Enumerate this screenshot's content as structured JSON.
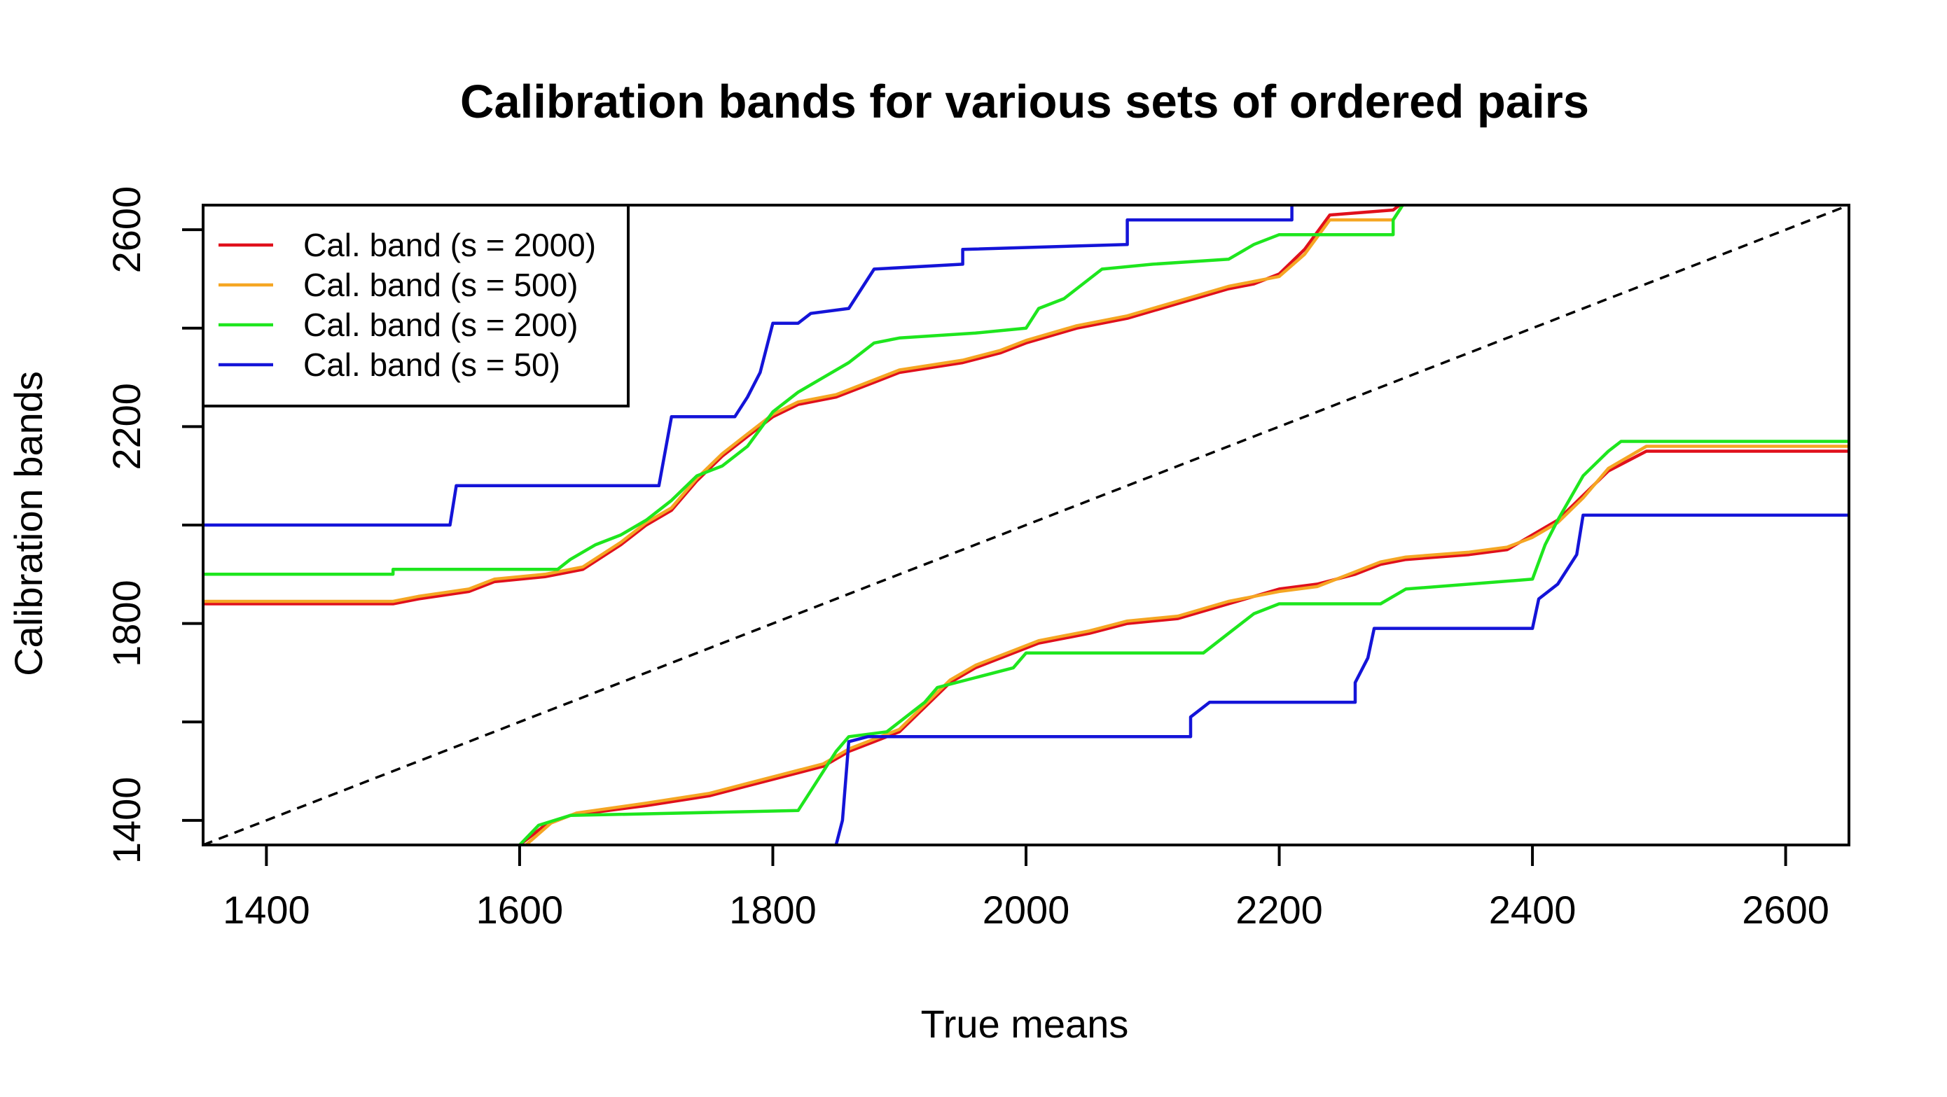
{
  "chart_data": {
    "type": "line",
    "title": "Calibration bands for various sets of ordered pairs",
    "xlabel": "True means",
    "ylabel": "Calibration bands",
    "xlim": [
      1350,
      2650
    ],
    "ylim": [
      1350,
      2650
    ],
    "xticks": [
      1400,
      1600,
      1800,
      2000,
      2200,
      2400,
      2600
    ],
    "yticks": [
      1400,
      1800,
      2200,
      2600
    ],
    "grid": false,
    "legend_position": "top-left",
    "reference_line": {
      "style": "dashed",
      "color": "#000000",
      "points": [
        [
          1350,
          1350
        ],
        [
          2650,
          2650
        ]
      ]
    },
    "series": [
      {
        "name": "Cal. band (s = 2000)",
        "color": "#e0101c",
        "upper": [
          [
            1350,
            1840
          ],
          [
            1500,
            1840
          ],
          [
            1520,
            1850
          ],
          [
            1560,
            1865
          ],
          [
            1580,
            1885
          ],
          [
            1620,
            1895
          ],
          [
            1650,
            1910
          ],
          [
            1680,
            1960
          ],
          [
            1700,
            2000
          ],
          [
            1720,
            2030
          ],
          [
            1740,
            2090
          ],
          [
            1760,
            2140
          ],
          [
            1780,
            2180
          ],
          [
            1800,
            2220
          ],
          [
            1820,
            2245
          ],
          [
            1850,
            2260
          ],
          [
            1880,
            2290
          ],
          [
            1900,
            2310
          ],
          [
            1950,
            2330
          ],
          [
            1980,
            2350
          ],
          [
            2000,
            2370
          ],
          [
            2040,
            2400
          ],
          [
            2080,
            2420
          ],
          [
            2120,
            2450
          ],
          [
            2160,
            2480
          ],
          [
            2180,
            2490
          ],
          [
            2200,
            2510
          ],
          [
            2220,
            2560
          ],
          [
            2240,
            2630
          ],
          [
            2290,
            2640
          ],
          [
            2300,
            2660
          ]
        ],
        "lower": [
          [
            1600,
            1350
          ],
          [
            1620,
            1390
          ],
          [
            1640,
            1410
          ],
          [
            1700,
            1430
          ],
          [
            1750,
            1450
          ],
          [
            1780,
            1470
          ],
          [
            1810,
            1490
          ],
          [
            1840,
            1510
          ],
          [
            1860,
            1540
          ],
          [
            1880,
            1560
          ],
          [
            1900,
            1580
          ],
          [
            1920,
            1630
          ],
          [
            1940,
            1680
          ],
          [
            1960,
            1710
          ],
          [
            1990,
            1740
          ],
          [
            2010,
            1760
          ],
          [
            2050,
            1780
          ],
          [
            2080,
            1800
          ],
          [
            2120,
            1810
          ],
          [
            2160,
            1840
          ],
          [
            2200,
            1870
          ],
          [
            2230,
            1880
          ],
          [
            2260,
            1900
          ],
          [
            2280,
            1920
          ],
          [
            2300,
            1930
          ],
          [
            2350,
            1940
          ],
          [
            2380,
            1950
          ],
          [
            2400,
            1980
          ],
          [
            2420,
            2010
          ],
          [
            2440,
            2060
          ],
          [
            2460,
            2110
          ],
          [
            2490,
            2150
          ],
          [
            2650,
            2150
          ]
        ]
      },
      {
        "name": "Cal. band (s = 500)",
        "color": "#f5a623",
        "upper": [
          [
            1350,
            1845
          ],
          [
            1500,
            1845
          ],
          [
            1520,
            1855
          ],
          [
            1560,
            1870
          ],
          [
            1580,
            1890
          ],
          [
            1620,
            1900
          ],
          [
            1650,
            1915
          ],
          [
            1680,
            1965
          ],
          [
            1700,
            2005
          ],
          [
            1720,
            2035
          ],
          [
            1740,
            2095
          ],
          [
            1760,
            2145
          ],
          [
            1780,
            2185
          ],
          [
            1800,
            2225
          ],
          [
            1820,
            2250
          ],
          [
            1850,
            2265
          ],
          [
            1880,
            2295
          ],
          [
            1900,
            2315
          ],
          [
            1950,
            2335
          ],
          [
            1980,
            2355
          ],
          [
            2000,
            2375
          ],
          [
            2040,
            2405
          ],
          [
            2080,
            2425
          ],
          [
            2120,
            2455
          ],
          [
            2160,
            2485
          ],
          [
            2180,
            2495
          ],
          [
            2200,
            2505
          ],
          [
            2220,
            2550
          ],
          [
            2240,
            2620
          ],
          [
            2290,
            2620
          ],
          [
            2300,
            2660
          ]
        ],
        "lower": [
          [
            1605,
            1350
          ],
          [
            1625,
            1395
          ],
          [
            1645,
            1415
          ],
          [
            1700,
            1435
          ],
          [
            1750,
            1455
          ],
          [
            1780,
            1475
          ],
          [
            1810,
            1495
          ],
          [
            1840,
            1515
          ],
          [
            1860,
            1545
          ],
          [
            1880,
            1565
          ],
          [
            1900,
            1585
          ],
          [
            1920,
            1635
          ],
          [
            1940,
            1685
          ],
          [
            1960,
            1715
          ],
          [
            1990,
            1745
          ],
          [
            2010,
            1765
          ],
          [
            2050,
            1785
          ],
          [
            2080,
            1805
          ],
          [
            2120,
            1815
          ],
          [
            2160,
            1845
          ],
          [
            2200,
            1865
          ],
          [
            2230,
            1875
          ],
          [
            2260,
            1905
          ],
          [
            2280,
            1925
          ],
          [
            2300,
            1935
          ],
          [
            2350,
            1945
          ],
          [
            2380,
            1955
          ],
          [
            2400,
            1975
          ],
          [
            2420,
            2005
          ],
          [
            2440,
            2055
          ],
          [
            2460,
            2115
          ],
          [
            2490,
            2160
          ],
          [
            2650,
            2160
          ]
        ]
      },
      {
        "name": "Cal. band (s = 200)",
        "color": "#1ee61e",
        "upper": [
          [
            1350,
            1900
          ],
          [
            1500,
            1900
          ],
          [
            1500,
            1910
          ],
          [
            1630,
            1910
          ],
          [
            1640,
            1930
          ],
          [
            1660,
            1960
          ],
          [
            1680,
            1980
          ],
          [
            1700,
            2010
          ],
          [
            1720,
            2050
          ],
          [
            1740,
            2100
          ],
          [
            1760,
            2120
          ],
          [
            1780,
            2160
          ],
          [
            1800,
            2230
          ],
          [
            1820,
            2270
          ],
          [
            1840,
            2300
          ],
          [
            1860,
            2330
          ],
          [
            1880,
            2370
          ],
          [
            1900,
            2380
          ],
          [
            1960,
            2390
          ],
          [
            2000,
            2400
          ],
          [
            2010,
            2440
          ],
          [
            2030,
            2460
          ],
          [
            2040,
            2480
          ],
          [
            2060,
            2520
          ],
          [
            2100,
            2530
          ],
          [
            2160,
            2540
          ],
          [
            2180,
            2570
          ],
          [
            2200,
            2590
          ],
          [
            2290,
            2590
          ],
          [
            2290,
            2620
          ],
          [
            2300,
            2660
          ]
        ],
        "lower": [
          [
            1600,
            1350
          ],
          [
            1615,
            1390
          ],
          [
            1640,
            1410
          ],
          [
            1820,
            1420
          ],
          [
            1830,
            1460
          ],
          [
            1850,
            1540
          ],
          [
            1860,
            1570
          ],
          [
            1890,
            1580
          ],
          [
            1910,
            1620
          ],
          [
            1920,
            1640
          ],
          [
            1930,
            1670
          ],
          [
            1960,
            1690
          ],
          [
            1990,
            1710
          ],
          [
            2000,
            1740
          ],
          [
            2140,
            1740
          ],
          [
            2160,
            1780
          ],
          [
            2180,
            1820
          ],
          [
            2200,
            1840
          ],
          [
            2280,
            1840
          ],
          [
            2300,
            1870
          ],
          [
            2400,
            1890
          ],
          [
            2410,
            1960
          ],
          [
            2420,
            2010
          ],
          [
            2440,
            2100
          ],
          [
            2460,
            2150
          ],
          [
            2470,
            2170
          ],
          [
            2650,
            2170
          ]
        ]
      },
      {
        "name": "Cal. band (s = 50)",
        "color": "#1414d8",
        "upper": [
          [
            1350,
            2000
          ],
          [
            1545,
            2000
          ],
          [
            1550,
            2080
          ],
          [
            1710,
            2080
          ],
          [
            1720,
            2220
          ],
          [
            1770,
            2220
          ],
          [
            1780,
            2260
          ],
          [
            1790,
            2310
          ],
          [
            1800,
            2410
          ],
          [
            1820,
            2410
          ],
          [
            1830,
            2430
          ],
          [
            1860,
            2440
          ],
          [
            1870,
            2480
          ],
          [
            1880,
            2520
          ],
          [
            1950,
            2530
          ],
          [
            1950,
            2560
          ],
          [
            2080,
            2570
          ],
          [
            2080,
            2620
          ],
          [
            2210,
            2620
          ],
          [
            2210,
            2660
          ]
        ],
        "lower": [
          [
            1850,
            1350
          ],
          [
            1855,
            1400
          ],
          [
            1860,
            1560
          ],
          [
            1875,
            1570
          ],
          [
            1900,
            1570
          ],
          [
            2130,
            1570
          ],
          [
            2130,
            1610
          ],
          [
            2145,
            1640
          ],
          [
            2260,
            1640
          ],
          [
            2260,
            1680
          ],
          [
            2270,
            1730
          ],
          [
            2275,
            1790
          ],
          [
            2400,
            1790
          ],
          [
            2405,
            1850
          ],
          [
            2420,
            1880
          ],
          [
            2435,
            1940
          ],
          [
            2440,
            2020
          ],
          [
            2650,
            2020
          ]
        ]
      }
    ]
  }
}
